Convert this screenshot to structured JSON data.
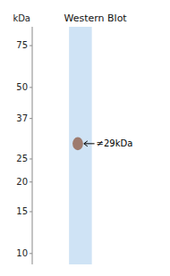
{
  "chart_data": {
    "type": "blot",
    "title": "Western Blot",
    "y_label": "kDa",
    "values": [
      29
    ],
    "color": "#9e7b6e",
    "ylim": [
      9.0,
      90.0
    ],
    "yticks": [
      75,
      50,
      37,
      25,
      20,
      15,
      10
    ],
    "log": "y",
    "annotations": [
      {
        "text": "≠29kDa",
        "y": 29
      }
    ]
  }
}
